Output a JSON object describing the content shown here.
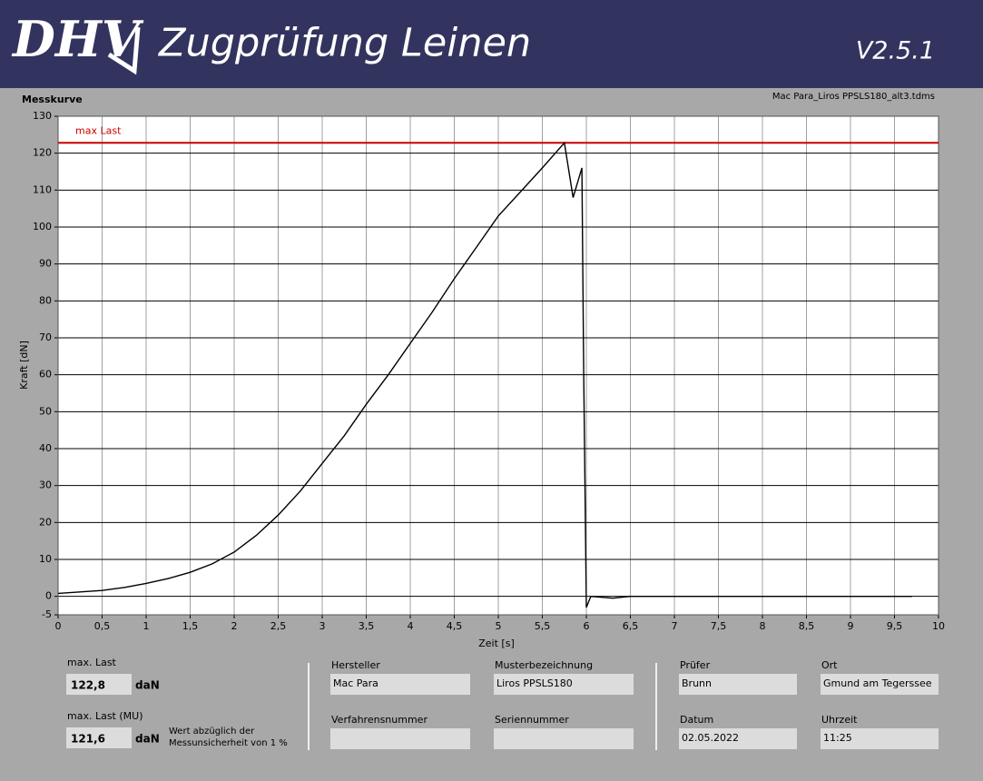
{
  "header": {
    "logo": "DHV",
    "title": "Zugprüfung Leinen",
    "version": "V2.5.1"
  },
  "chart_data": {
    "type": "line",
    "title": "Messkurve",
    "subtitle": "Mac Para_Liros PPSLS180_alt3.tdms",
    "x_label": "Zeit [s]",
    "y_label": "Kraft [dN]",
    "color": "#000000",
    "x": [
      0,
      0.25,
      0.5,
      0.75,
      1,
      1.25,
      1.5,
      1.75,
      2,
      2.25,
      2.5,
      2.75,
      3,
      3.25,
      3.5,
      3.75,
      4,
      4.25,
      4.5,
      4.75,
      5,
      5.25,
      5.5,
      5.75,
      5.85,
      5.95,
      5.97,
      6,
      6.05,
      6.3,
      6.5,
      7,
      7.5,
      8,
      8.5,
      9,
      9.7
    ],
    "values": [
      0.8,
      1.2,
      1.6,
      2.4,
      3.5,
      4.8,
      6.5,
      8.8,
      12,
      16.5,
      22,
      28.5,
      36,
      43.5,
      52,
      60,
      68.5,
      77,
      86,
      94.5,
      103,
      109.5,
      116,
      122.8,
      108,
      116,
      60,
      -3,
      0,
      -0.5,
      0,
      0,
      0,
      0,
      0,
      0,
      0
    ],
    "max_line": {
      "label": "max Last",
      "value": 122.8,
      "color": "#cc0000"
    },
    "xlim": [
      0,
      10
    ],
    "ylim": [
      -5,
      130
    ],
    "xticks": [
      0,
      {
        "value": 0.5,
        "label": "0,5"
      },
      1,
      {
        "value": 1.5,
        "label": "1,5"
      },
      2,
      {
        "value": 2.5,
        "label": "2,5"
      },
      3,
      {
        "value": 3.5,
        "label": "3,5"
      },
      4,
      {
        "value": 4.5,
        "label": "4,5"
      },
      5,
      {
        "value": 5.5,
        "label": "5,5"
      },
      6,
      {
        "value": 6.5,
        "label": "6,5"
      },
      7,
      {
        "value": 7.5,
        "label": "7,5"
      },
      8,
      {
        "value": 8.5,
        "label": "8,5"
      },
      9,
      {
        "value": 9.5,
        "label": "9,5"
      },
      10
    ],
    "yticks": [
      -5,
      0,
      10,
      20,
      30,
      40,
      50,
      60,
      70,
      80,
      90,
      100,
      110,
      120,
      130
    ],
    "grid": true
  },
  "form": {
    "max_last": {
      "label": "max. Last",
      "value": "122,8",
      "unit": "daN"
    },
    "max_last_mu": {
      "label": "max. Last (MU)",
      "value": "121,6",
      "unit": "daN",
      "note": [
        "Wert abzüglich der",
        "Messunsicherheit von 1 %"
      ]
    },
    "fields": [
      {
        "label": "Hersteller",
        "value": "Mac Para"
      },
      {
        "label": "Musterbezeichnung",
        "value": "Liros PPSLS180"
      },
      {
        "label": "Verfahrensnummer"
      },
      {
        "label": "Seriennummer"
      },
      {
        "label": "Prüfer",
        "value": "Brunn"
      },
      {
        "label": "Ort",
        "value": "Gmund am Tegerssee"
      },
      {
        "label": "Datum",
        "value": "02.05.2022"
      },
      {
        "label": "Uhrzeit",
        "value": "11:25"
      }
    ]
  }
}
